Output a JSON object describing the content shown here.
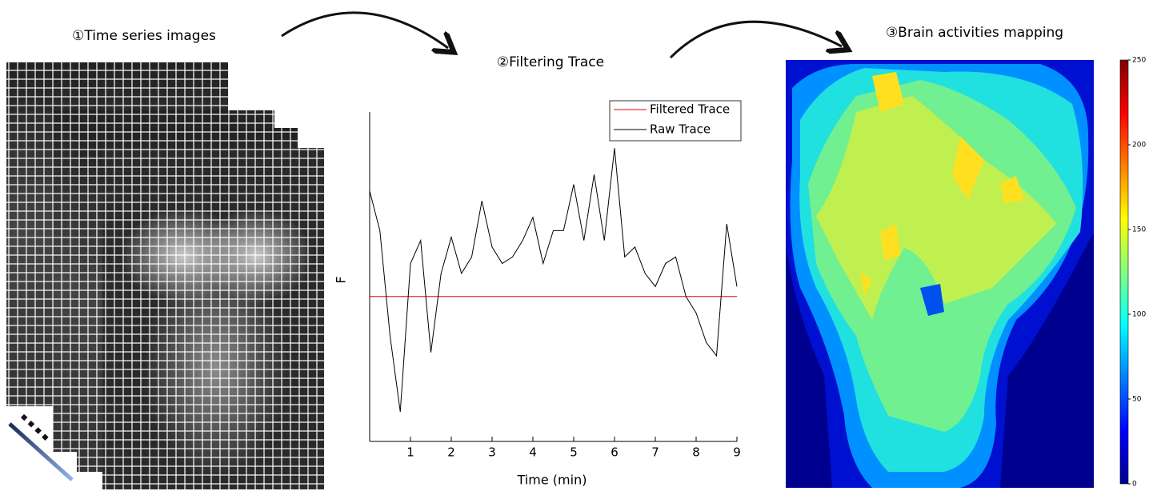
{
  "steps": [
    "①Time series images",
    "②Filtering Trace",
    "③Brain activities mapping"
  ],
  "chart_data": {
    "type": "line",
    "xlabel": "Time (min)",
    "ylabel": "F",
    "x": [
      0,
      0.25,
      0.5,
      0.75,
      1,
      1.25,
      1.5,
      1.75,
      2,
      2.25,
      2.5,
      2.75,
      3,
      3.25,
      3.5,
      3.75,
      4,
      4.25,
      4.5,
      4.75,
      5,
      5.25,
      5.5,
      5.75,
      6,
      6.25,
      6.5,
      6.75,
      7,
      7.25,
      7.5,
      7.75,
      8,
      8.25,
      8.5,
      8.75,
      9
    ],
    "series": [
      {
        "name": "Filtered Trace",
        "color": "#e00000",
        "values": [
          44,
          44,
          44,
          44,
          44,
          44,
          44,
          44,
          44,
          44,
          44,
          44,
          44,
          44,
          44,
          44,
          44,
          44,
          44,
          44,
          44,
          44,
          44,
          44,
          44,
          44,
          44,
          44,
          44,
          44,
          44,
          44,
          44,
          44,
          44,
          44,
          44
        ]
      },
      {
        "name": "Raw Trace",
        "color": "#000000",
        "values": [
          76,
          64,
          32,
          9,
          54,
          61,
          27,
          51,
          62,
          51,
          56,
          73,
          59,
          54,
          56,
          61,
          68,
          54,
          64,
          64,
          78,
          61,
          81,
          61,
          89,
          56,
          59,
          51,
          47,
          54,
          56,
          44,
          39,
          30,
          26,
          66,
          47
        ]
      }
    ],
    "xlim": [
      0,
      9
    ],
    "ylim": [
      0,
      100
    ],
    "xticks": [
      1,
      2,
      3,
      4,
      5,
      6,
      7,
      8,
      9
    ]
  },
  "colorbar": {
    "clim": [
      0,
      250
    ],
    "ticks": [
      0,
      50,
      100,
      150,
      200,
      250
    ]
  }
}
